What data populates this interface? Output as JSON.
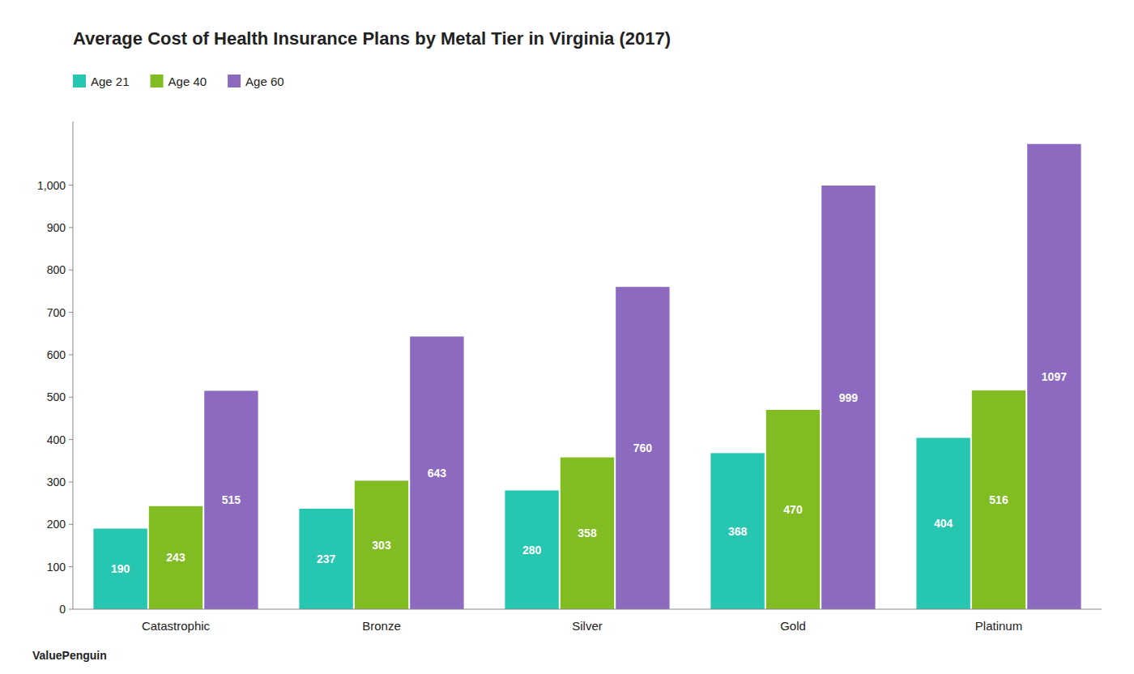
{
  "chart_data": {
    "type": "bar",
    "title": "Average Cost of Health Insurance Plans by Metal Tier in Virginia (2017)",
    "categories": [
      "Catastrophic",
      "Bronze",
      "Silver",
      "Gold",
      "Platinum"
    ],
    "series": [
      {
        "name": "Age 21",
        "color": "#26c6b0",
        "values": [
          190,
          237,
          280,
          368,
          404
        ]
      },
      {
        "name": "Age 40",
        "color": "#80bc22",
        "values": [
          243,
          303,
          358,
          470,
          516
        ]
      },
      {
        "name": "Age 60",
        "color": "#8b6abf",
        "values": [
          515,
          643,
          760,
          999,
          1097
        ]
      }
    ],
    "ylim": [
      0,
      1150
    ],
    "yticks": [
      0,
      100,
      200,
      300,
      400,
      500,
      600,
      700,
      800,
      900,
      {
        "value": 1000,
        "label": "1,000"
      }
    ],
    "grid": false,
    "legend": "top-left",
    "data_labels": true,
    "annotations": [
      "ValuePenguin"
    ]
  }
}
